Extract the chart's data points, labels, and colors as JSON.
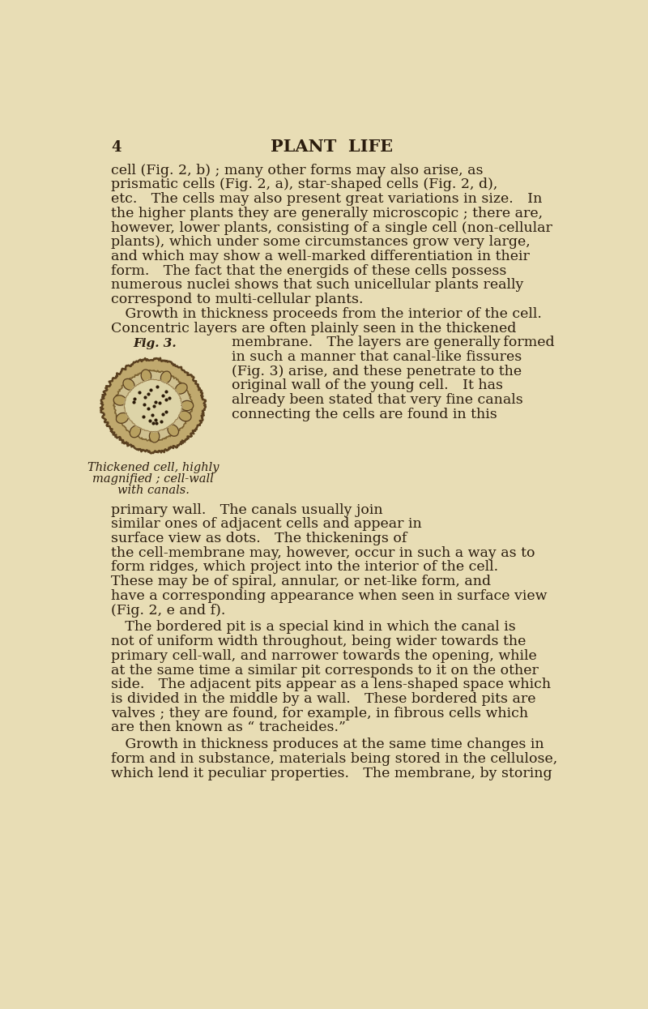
{
  "bg_color": "#e8ddb5",
  "page_number": "4",
  "header": "PLANT  LIFE",
  "text_color": "#2b1d0e",
  "fig_label": "Fig. 3.",
  "fig_caption_lines": [
    "Thickened cell, highly",
    "magnified ; cell-wall",
    "with canals."
  ],
  "para1_lines": [
    "cell (Fig. 2, b) ; many other forms may also arise, as",
    "prismatic cells (Fig. 2, a), star-shaped cells (Fig. 2, d),",
    "etc. The cells may also present great variations in size. In",
    "the higher plants they are generally microscopic ; there are,",
    "however, lower plants, consisting of a single cell (non-cellular",
    "plants), which under some circumstances grow very large,",
    "and which may show a well-marked differentiation in their",
    "form. The fact that the energids of these cells possess",
    "numerous nuclei shows that such unicellular plants really",
    "correspond to multi-cellular plants."
  ],
  "para2_before_fig": [
    " Growth in thickness proceeds from the interior of the cell.",
    "Concentric layers are often plainly seen in the thickened"
  ],
  "para2_beside_fig": [
    "membrane. The layers are generally formed",
    "in such a manner that canal-like fissures",
    "(Fig. 3) arise, and these penetrate to the",
    "original wall of the young cell. It has",
    "already been stated that very fine canals",
    "connecting the cells are found in this"
  ],
  "para2_below_fig_caption": [
    "primary wall. The canals usually join",
    "similar ones of adjacent cells and appear in",
    "surface view as dots. The thickenings of",
    "the cell-membrane may, however, occur in such a way as to",
    "form ridges, which project into the interior of the cell.",
    "These may be of spiral, annular, or net-like form, and",
    "have a corresponding appearance when seen in surface view",
    "(Fig. 2, e and f)."
  ],
  "para3_lines": [
    " The bordered pit is a special kind in which the canal is",
    "not of uniform width throughout, being wider towards the",
    "primary cell-wall, and narrower towards the opening, while",
    "at the same time a similar pit corresponds to it on the other",
    "side. The adjacent pits appear as a lens-shaped space which",
    "is divided in the middle by a wall. These bordered pits are",
    "valves ; they are found, for example, in fibrous cells which",
    "are then known as “ tracheides.”"
  ],
  "para4_lines": [
    " Growth in thickness produces at the same time changes in",
    "form and in substance, materials being stored in the cellulose,",
    "which lend it peculiar properties. The membrane, by storing"
  ]
}
